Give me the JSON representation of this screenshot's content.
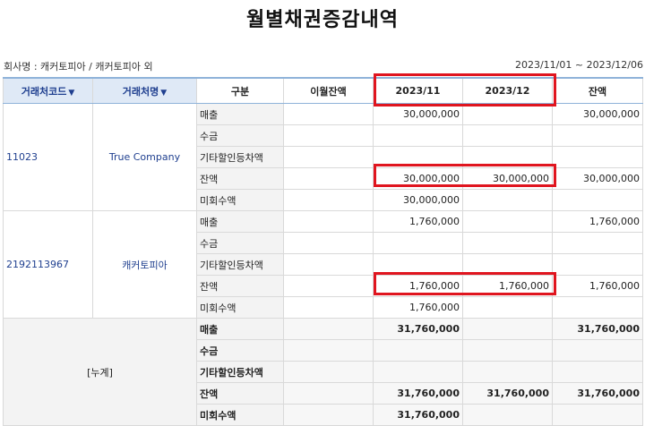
{
  "title": "월별채권증감내역",
  "meta": {
    "company": "회사명 : 캐커토피아 / 캐커토피아 외",
    "period": "2023/11/01 ~ 2023/12/06"
  },
  "headers": {
    "code": "거래처코드",
    "name": "거래처명",
    "type": "구분",
    "carryover": "이월잔액",
    "m1": "2023/11",
    "m2": "2023/12",
    "balance": "잔액",
    "sort_icon": "▼"
  },
  "groups": [
    {
      "code": "11023",
      "name": "True Company",
      "rows": [
        {
          "type": "매출",
          "carry": "",
          "m1": "30,000,000",
          "m2": "",
          "bal": "30,000,000"
        },
        {
          "type": "수금",
          "carry": "",
          "m1": "",
          "m2": "",
          "bal": ""
        },
        {
          "type": "기타할인등차액",
          "carry": "",
          "m1": "",
          "m2": "",
          "bal": ""
        },
        {
          "type": "잔액",
          "carry": "",
          "m1": "30,000,000",
          "m2": "30,000,000",
          "bal": "30,000,000"
        },
        {
          "type": "미회수액",
          "carry": "",
          "m1": "30,000,000",
          "m2": "",
          "bal": ""
        }
      ]
    },
    {
      "code": "2192113967",
      "name": "캐커토피아",
      "rows": [
        {
          "type": "매출",
          "carry": "",
          "m1": "1,760,000",
          "m2": "",
          "bal": "1,760,000"
        },
        {
          "type": "수금",
          "carry": "",
          "m1": "",
          "m2": "",
          "bal": ""
        },
        {
          "type": "기타할인등차액",
          "carry": "",
          "m1": "",
          "m2": "",
          "bal": ""
        },
        {
          "type": "잔액",
          "carry": "",
          "m1": "1,760,000",
          "m2": "1,760,000",
          "bal": "1,760,000"
        },
        {
          "type": "미회수액",
          "carry": "",
          "m1": "1,760,000",
          "m2": "",
          "bal": ""
        }
      ]
    }
  ],
  "total": {
    "label": "[누계]",
    "rows": [
      {
        "type": "매출",
        "carry": "",
        "m1": "31,760,000",
        "m2": "",
        "bal": "31,760,000"
      },
      {
        "type": "수금",
        "carry": "",
        "m1": "",
        "m2": "",
        "bal": ""
      },
      {
        "type": "기타할인등차액",
        "carry": "",
        "m1": "",
        "m2": "",
        "bal": ""
      },
      {
        "type": "잔액",
        "carry": "",
        "m1": "31,760,000",
        "m2": "31,760,000",
        "bal": "31,760,000"
      },
      {
        "type": "미회수액",
        "carry": "",
        "m1": "31,760,000",
        "m2": "",
        "bal": ""
      }
    ]
  },
  "highlight_color": "#e0151f"
}
